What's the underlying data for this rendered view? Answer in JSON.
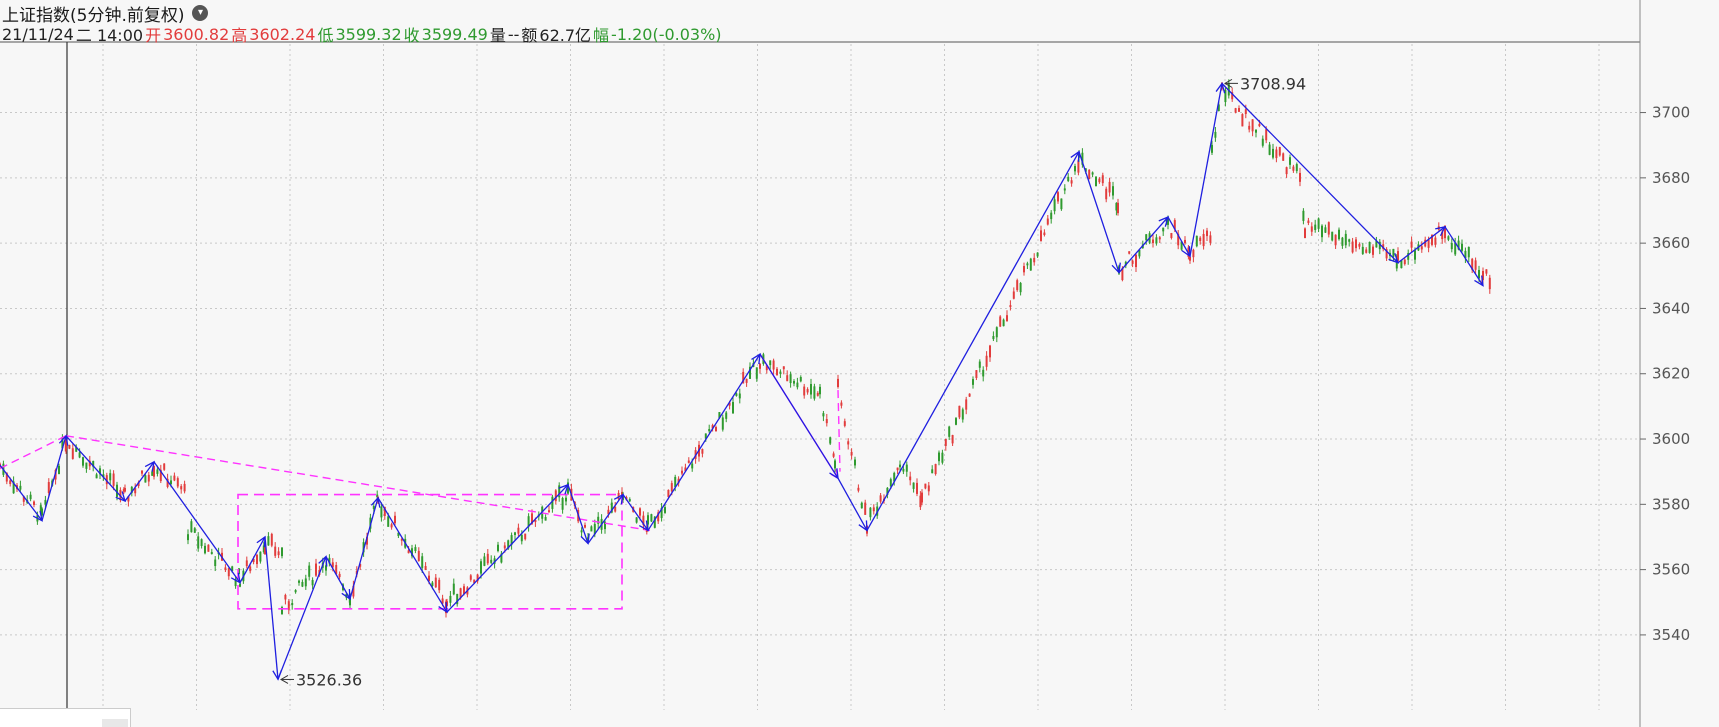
{
  "header": {
    "title": "上证指数(5分钟.前复权)",
    "dropdown_icon": "chevron-down-icon"
  },
  "info": {
    "date_label": "21/11/24",
    "weekday_time": "二  14:00",
    "open_label": "开",
    "open_value": "3600.82",
    "high_label": "高",
    "high_value": "3602.24",
    "low_label": "低",
    "low_value": "3599.32",
    "close_label": "收",
    "close_value": "3599.49",
    "volume_label": "量",
    "volume_value": "--",
    "amount_label": "额",
    "amount_value": "62.7亿",
    "change_label": "幅",
    "change_value": "-1.20(-0.03%)"
  },
  "colors": {
    "up": "#e23c3c",
    "down": "#2f9a2f",
    "zigzag": "#1f1fe0",
    "pattern": "#ff33ff",
    "grid": "#c8c8c8"
  },
  "chart_data": {
    "type": "candlestick",
    "y_ticks": [
      3540,
      3560,
      3580,
      3600,
      3620,
      3640,
      3660,
      3680,
      3700
    ],
    "y_range": [
      3517,
      3721
    ],
    "annotations": [
      {
        "label": "3708.94",
        "x": 1222,
        "y": 3708.94
      },
      {
        "label": "3526.36",
        "x": 278,
        "y": 3526.36
      }
    ],
    "zigzag": [
      [
        0,
        3592
      ],
      [
        42,
        3575
      ],
      [
        66,
        3601
      ],
      [
        125,
        3581
      ],
      [
        154,
        3593
      ],
      [
        240,
        3556
      ],
      [
        265,
        3570
      ],
      [
        278,
        3526.4
      ],
      [
        326,
        3564
      ],
      [
        350,
        3551
      ],
      [
        378,
        3582
      ],
      [
        447,
        3547
      ],
      [
        568,
        3586
      ],
      [
        588,
        3568
      ],
      [
        623,
        3583
      ],
      [
        648,
        3572
      ],
      [
        760,
        3626
      ],
      [
        838,
        3588
      ],
      [
        867,
        3572
      ],
      [
        1079,
        3688
      ],
      [
        1119,
        3651
      ],
      [
        1168,
        3668
      ],
      [
        1190,
        3656
      ],
      [
        1222,
        3708.9
      ],
      [
        1398,
        3654
      ],
      [
        1445,
        3665
      ],
      [
        1483,
        3647
      ]
    ],
    "pattern_lines": [
      [
        [
          0,
          3591
        ],
        [
          66,
          3601
        ]
      ],
      [
        [
          66,
          3601
        ],
        [
          650,
          3572
        ]
      ],
      [
        [
          760,
          3626
        ],
        [
          838,
          3588
        ]
      ],
      [
        [
          838,
          3615
        ],
        [
          840,
          3590
        ]
      ]
    ],
    "pattern_box": {
      "x0": 238,
      "x1": 622,
      "y0": 3548,
      "y1": 3583
    },
    "crosshair_x": 67,
    "candles_segments": [
      [
        0,
        3592
      ],
      [
        42,
        3576
      ],
      [
        66,
        3600
      ],
      [
        125,
        3582
      ],
      [
        154,
        3592
      ],
      [
        188,
        3583
      ],
      [
        188,
        3572
      ],
      [
        240,
        3557
      ],
      [
        265,
        3568
      ],
      [
        282,
        3565
      ],
      [
        282,
        3548
      ],
      [
        326,
        3563
      ],
      [
        350,
        3552
      ],
      [
        378,
        3581
      ],
      [
        447,
        3550
      ],
      [
        568,
        3584
      ],
      [
        588,
        3569
      ],
      [
        623,
        3582
      ],
      [
        648,
        3573
      ],
      [
        760,
        3624
      ],
      [
        820,
        3614
      ],
      [
        835,
        3593
      ],
      [
        838,
        3615
      ],
      [
        867,
        3574
      ],
      [
        900,
        3593
      ],
      [
        922,
        3582
      ],
      [
        1079,
        3686
      ],
      [
        1118,
        3673
      ],
      [
        1119,
        3652
      ],
      [
        1168,
        3666
      ],
      [
        1190,
        3657
      ],
      [
        1212,
        3663
      ],
      [
        1212,
        3688
      ],
      [
        1222,
        3707
      ],
      [
        1300,
        3680
      ],
      [
        1305,
        3665
      ],
      [
        1398,
        3655
      ],
      [
        1445,
        3664
      ],
      [
        1483,
        3650
      ],
      [
        1490,
        3649
      ]
    ]
  }
}
